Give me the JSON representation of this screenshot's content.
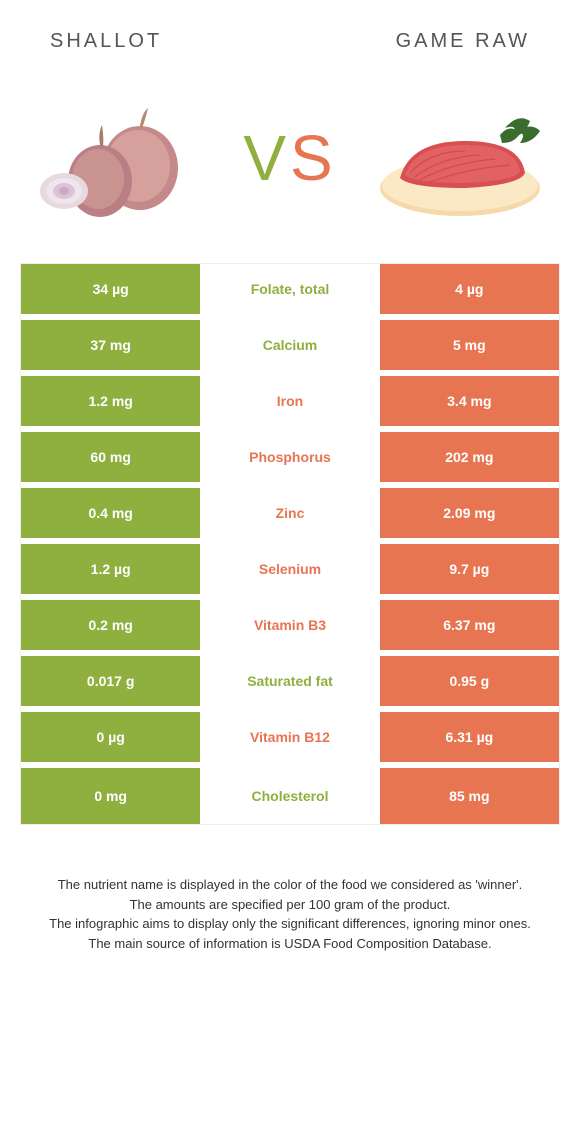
{
  "header": {
    "left_title": "SHALLOT",
    "right_title": "GAME RAW"
  },
  "vs": {
    "v": "V",
    "s": "S"
  },
  "colors": {
    "shallot": "#8fb03e",
    "game": "#e77552",
    "bg": "#ffffff"
  },
  "rows": [
    {
      "left": "34 µg",
      "label": "Folate, total",
      "right": "4 µg",
      "winner": "shallot"
    },
    {
      "left": "37 mg",
      "label": "Calcium",
      "right": "5 mg",
      "winner": "shallot"
    },
    {
      "left": "1.2 mg",
      "label": "Iron",
      "right": "3.4 mg",
      "winner": "game"
    },
    {
      "left": "60 mg",
      "label": "Phosphorus",
      "right": "202 mg",
      "winner": "game"
    },
    {
      "left": "0.4 mg",
      "label": "Zinc",
      "right": "2.09 mg",
      "winner": "game"
    },
    {
      "left": "1.2 µg",
      "label": "Selenium",
      "right": "9.7 µg",
      "winner": "game"
    },
    {
      "left": "0.2 mg",
      "label": "Vitamin B3",
      "right": "6.37 mg",
      "winner": "game"
    },
    {
      "left": "0.017 g",
      "label": "Saturated fat",
      "right": "0.95 g",
      "winner": "shallot"
    },
    {
      "left": "0 µg",
      "label": "Vitamin B12",
      "right": "6.31 µg",
      "winner": "game"
    },
    {
      "left": "0 mg",
      "label": "Cholesterol",
      "right": "85 mg",
      "winner": "shallot"
    }
  ],
  "footer": {
    "line1": "The nutrient name is displayed in the color of the food we considered as 'winner'.",
    "line2": "The amounts are specified per 100 gram of the product.",
    "line3": "The infographic aims to display only the significant differences, ignoring minor ones.",
    "line4": "The main source of information is USDA Food Composition Database."
  }
}
